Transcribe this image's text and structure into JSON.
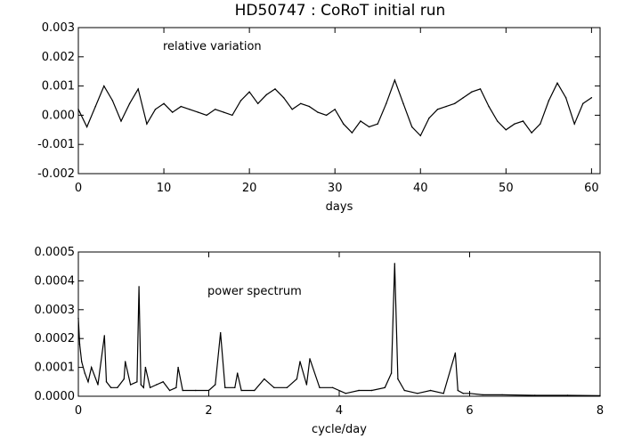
{
  "figure": {
    "title": "HD50747 : CoRoT initial run"
  },
  "chart_data": [
    {
      "type": "line",
      "xlabel": "days",
      "ylabel": "",
      "annotation": "relative variation",
      "xlim": [
        0,
        61
      ],
      "ylim": [
        -0.002,
        0.003
      ],
      "xticks": [
        0,
        10,
        20,
        30,
        40,
        50,
        60
      ],
      "xtick_labels": [
        "0",
        "10",
        "20",
        "30",
        "40",
        "50",
        "60"
      ],
      "yticks": [
        -0.002,
        -0.001,
        0.0,
        0.001,
        0.002,
        0.003
      ],
      "ytick_labels": [
        "-0.002",
        "-0.001",
        "0.000",
        "0.001",
        "0.002",
        "0.003"
      ],
      "grid": false,
      "series": [
        {
          "x": [
            0,
            1,
            2,
            3,
            4,
            5,
            6,
            7,
            8,
            9,
            10,
            11,
            12,
            13,
            14,
            15,
            16,
            17,
            18,
            19,
            20,
            21,
            22,
            23,
            24,
            25,
            26,
            27,
            28,
            29,
            30,
            31,
            32,
            33,
            34,
            35,
            36,
            37,
            38,
            39,
            40,
            41,
            42,
            43,
            44,
            45,
            46,
            47,
            48,
            49,
            50,
            51,
            52,
            53,
            54,
            55,
            56,
            57,
            58,
            59,
            60
          ],
          "values": [
            0.0002,
            -0.0004,
            0.0003,
            0.001,
            0.0005,
            -0.0002,
            0.0004,
            0.0009,
            -0.0003,
            0.0002,
            0.0004,
            0.0001,
            0.0003,
            0.0002,
            0.0001,
            0.0,
            0.0002,
            0.0001,
            0.0,
            0.0005,
            0.0008,
            0.0004,
            0.0007,
            0.0009,
            0.0006,
            0.0002,
            0.0004,
            0.0003,
            0.0001,
            0.0,
            0.0002,
            -0.0003,
            -0.0006,
            -0.0002,
            -0.0004,
            -0.0003,
            0.0004,
            0.0012,
            0.0004,
            -0.0004,
            -0.0007,
            -0.0001,
            0.0002,
            0.0003,
            0.0004,
            0.0006,
            0.0008,
            0.0009,
            0.0003,
            -0.0002,
            -0.0005,
            -0.0003,
            -0.0002,
            -0.0006,
            -0.0003,
            0.0005,
            0.0011,
            0.0006,
            -0.0003,
            0.0004,
            0.0006
          ]
        }
      ]
    },
    {
      "type": "line",
      "xlabel": "cycle/day",
      "ylabel": "",
      "annotation": "power spectrum",
      "xlim": [
        0,
        8
      ],
      "ylim": [
        0,
        0.0005
      ],
      "xticks": [
        0,
        2,
        4,
        6,
        8
      ],
      "xtick_labels": [
        "0",
        "2",
        "4",
        "6",
        "8"
      ],
      "yticks": [
        0.0,
        0.0001,
        0.0002,
        0.0003,
        0.0004,
        0.0005
      ],
      "ytick_labels": [
        "0.0000",
        "0.0001",
        "0.0002",
        "0.0003",
        "0.0004",
        "0.0005"
      ],
      "grid": false,
      "series": [
        {
          "x": [
            0.0,
            0.02,
            0.05,
            0.1,
            0.15,
            0.2,
            0.3,
            0.4,
            0.43,
            0.5,
            0.6,
            0.7,
            0.72,
            0.8,
            0.9,
            0.93,
            0.96,
            1.0,
            1.03,
            1.1,
            1.2,
            1.3,
            1.4,
            1.5,
            1.53,
            1.6,
            1.8,
            2.0,
            2.1,
            2.18,
            2.25,
            2.4,
            2.44,
            2.5,
            2.7,
            2.85,
            3.0,
            3.2,
            3.35,
            3.4,
            3.5,
            3.55,
            3.7,
            3.9,
            4.1,
            4.3,
            4.5,
            4.7,
            4.8,
            4.85,
            4.9,
            5.0,
            5.2,
            5.4,
            5.6,
            5.78,
            5.82,
            5.9,
            6.0,
            6.2,
            6.5,
            7.0,
            7.5,
            8.0
          ],
          "values": [
            0.00027,
            0.00018,
            0.00012,
            8e-05,
            5e-05,
            0.0001,
            4e-05,
            0.00021,
            5e-05,
            3e-05,
            3e-05,
            6e-05,
            0.00012,
            4e-05,
            5e-05,
            0.00038,
            4e-05,
            3e-05,
            0.0001,
            3e-05,
            4e-05,
            5e-05,
            2e-05,
            3e-05,
            0.0001,
            2e-05,
            2e-05,
            2e-05,
            4e-05,
            0.00022,
            3e-05,
            3e-05,
            8e-05,
            2e-05,
            2e-05,
            6e-05,
            3e-05,
            3e-05,
            6e-05,
            0.00012,
            4e-05,
            0.00013,
            3e-05,
            3e-05,
            1e-05,
            2e-05,
            2e-05,
            3e-05,
            8e-05,
            0.00046,
            6e-05,
            2e-05,
            1e-05,
            2e-05,
            1e-05,
            0.00015,
            2e-05,
            1e-05,
            1e-05,
            5e-06,
            5e-06,
            3e-06,
            3e-06,
            2e-06
          ]
        }
      ]
    }
  ]
}
